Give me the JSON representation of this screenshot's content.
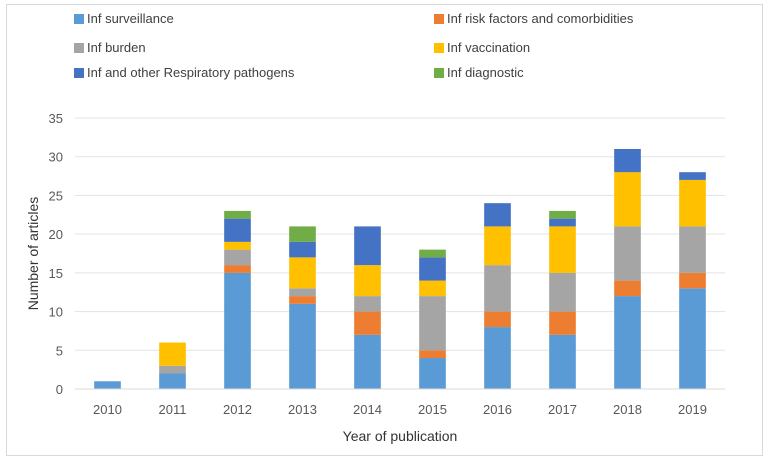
{
  "chart_data": {
    "type": "bar",
    "stacked": true,
    "categories": [
      "2010",
      "2011",
      "2012",
      "2013",
      "2014",
      "2015",
      "2016",
      "2017",
      "2018",
      "2019"
    ],
    "series": [
      {
        "name": "Inf surveillance",
        "color": "#5b9bd5",
        "values": [
          1,
          2,
          15,
          11,
          7,
          4,
          8,
          7,
          12,
          13
        ]
      },
      {
        "name": "Inf risk factors and  comorbidities",
        "color": "#ed7d31",
        "values": [
          0,
          0,
          1,
          1,
          3,
          1,
          2,
          3,
          2,
          2
        ]
      },
      {
        "name": "Inf burden",
        "color": "#a5a5a5",
        "values": [
          0,
          1,
          2,
          1,
          2,
          7,
          6,
          5,
          7,
          6
        ]
      },
      {
        "name": "Inf vaccination",
        "color": "#ffc000",
        "values": [
          0,
          3,
          1,
          4,
          4,
          2,
          5,
          6,
          7,
          6
        ]
      },
      {
        "name": "Inf and other Respiratory pathogens",
        "color": "#4472c4",
        "values": [
          0,
          0,
          3,
          2,
          5,
          3,
          3,
          1,
          3,
          1
        ]
      },
      {
        "name": "Inf diagnostic",
        "color": "#70ad47",
        "values": [
          0,
          0,
          1,
          2,
          0,
          1,
          0,
          1,
          0,
          0
        ]
      }
    ],
    "title": "",
    "xlabel": "Year of publication",
    "ylabel": "Number of articles",
    "ylim": [
      0,
      35
    ],
    "yticks": [
      0,
      5,
      10,
      15,
      20,
      25,
      30,
      35
    ],
    "grid": true,
    "legend_position": "top"
  }
}
